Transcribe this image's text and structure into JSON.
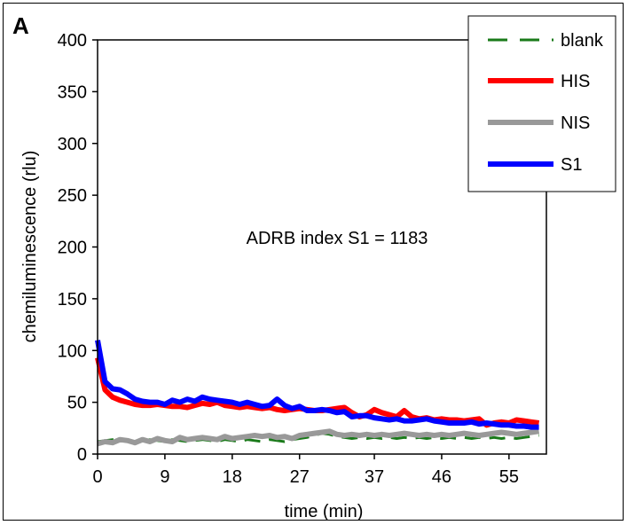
{
  "panel_label": "A",
  "annotation": "ADRB index S1 = 1183",
  "chart_data": {
    "type": "line",
    "title": "",
    "xlabel": "time (min)",
    "ylabel": "chemiluminescence (rlu)",
    "x_tick_labels": [
      "0",
      "9",
      "18",
      "27",
      "37",
      "46",
      "55"
    ],
    "y_tick_labels": [
      "0",
      "50",
      "100",
      "150",
      "200",
      "250",
      "300",
      "350",
      "400"
    ],
    "ylim": [
      0,
      400
    ],
    "grid": false,
    "legend_position": "top-right",
    "x": [
      0,
      1,
      2,
      3,
      4,
      5,
      6,
      7,
      8,
      9,
      10,
      11,
      12,
      13,
      14,
      15,
      16,
      17,
      18,
      19,
      20,
      21,
      22,
      23,
      24,
      25,
      26,
      27,
      28,
      29,
      30,
      31,
      32,
      33,
      34,
      35,
      36,
      37,
      38,
      39,
      40,
      41,
      42,
      43,
      44,
      45,
      46,
      47,
      48,
      49,
      50,
      51,
      52,
      53,
      54,
      55,
      56,
      57,
      58,
      59
    ],
    "series": [
      {
        "name": "blank",
        "color": "#1a7a1a",
        "dashed": true,
        "width": 3,
        "values": [
          12,
          13,
          14,
          13,
          14,
          12,
          13,
          14,
          13,
          12,
          14,
          13,
          12,
          13,
          14,
          13,
          12,
          14,
          13,
          12,
          14,
          13,
          12,
          14,
          13,
          12,
          14,
          15,
          16,
          18,
          20,
          19,
          17,
          16,
          15,
          16,
          15,
          16,
          15,
          16,
          15,
          16,
          15,
          16,
          15,
          16,
          15,
          16,
          15,
          16,
          15,
          16,
          15,
          16,
          15,
          16,
          15,
          16,
          17,
          18
        ]
      },
      {
        "name": "HIS",
        "color": "#ff0000",
        "dashed": false,
        "width": 6,
        "values": [
          93,
          62,
          55,
          52,
          50,
          48,
          47,
          47,
          48,
          47,
          46,
          46,
          45,
          47,
          49,
          48,
          50,
          47,
          46,
          45,
          46,
          45,
          44,
          45,
          43,
          42,
          43,
          44,
          43,
          42,
          42,
          43,
          44,
          45,
          40,
          36,
          38,
          43,
          40,
          38,
          36,
          42,
          36,
          34,
          35,
          33,
          34,
          33,
          33,
          32,
          33,
          34,
          28,
          30,
          31,
          30,
          33,
          32,
          31,
          30
        ]
      },
      {
        "name": "NIS",
        "color": "#999999",
        "dashed": false,
        "width": 6,
        "values": [
          10,
          12,
          11,
          14,
          13,
          11,
          14,
          12,
          15,
          13,
          12,
          16,
          14,
          15,
          16,
          15,
          14,
          17,
          15,
          16,
          17,
          18,
          17,
          18,
          16,
          17,
          15,
          18,
          19,
          20,
          21,
          22,
          19,
          18,
          19,
          18,
          19,
          18,
          19,
          18,
          19,
          20,
          19,
          18,
          19,
          18,
          19,
          18,
          19,
          20,
          19,
          18,
          19,
          20,
          21,
          20,
          19,
          20,
          21,
          22
        ]
      },
      {
        "name": "S1",
        "color": "#0000ff",
        "dashed": false,
        "width": 6,
        "values": [
          110,
          70,
          63,
          62,
          58,
          53,
          51,
          50,
          50,
          48,
          52,
          50,
          53,
          51,
          55,
          53,
          52,
          51,
          50,
          48,
          50,
          48,
          46,
          47,
          53,
          47,
          44,
          46,
          42,
          42,
          43,
          42,
          40,
          41,
          36,
          37,
          37,
          35,
          34,
          33,
          34,
          32,
          32,
          33,
          34,
          32,
          31,
          30,
          30,
          30,
          31,
          29,
          30,
          29,
          28,
          28,
          27,
          27,
          26,
          26
        ]
      }
    ]
  }
}
